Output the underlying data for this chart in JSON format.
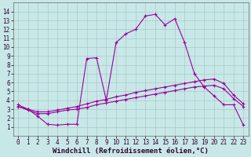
{
  "xlabel": "Windchill (Refroidissement éolien,°C)",
  "line1_x": [
    0,
    1,
    2,
    3,
    4,
    5,
    6,
    7,
    8,
    9,
    10,
    11,
    12,
    13,
    14,
    15,
    16,
    17,
    18,
    19,
    20,
    21,
    22,
    23
  ],
  "line1_y": [
    3.5,
    3.0,
    2.2,
    1.3,
    1.2,
    1.3,
    1.3,
    8.7,
    8.8,
    4.0,
    10.5,
    11.5,
    12.0,
    13.5,
    13.7,
    12.5,
    13.2,
    10.5,
    7.0,
    5.5,
    4.5,
    3.5,
    3.5,
    1.2
  ],
  "line2_x": [
    0,
    1,
    2,
    3,
    4,
    5,
    6,
    7,
    8,
    9,
    10,
    11,
    12,
    13,
    14,
    15,
    16,
    17,
    18,
    19,
    20,
    21,
    22,
    23
  ],
  "line2_y": [
    3.3,
    3.0,
    2.7,
    2.7,
    2.9,
    3.1,
    3.3,
    3.6,
    3.9,
    4.1,
    4.4,
    4.6,
    4.9,
    5.1,
    5.3,
    5.5,
    5.7,
    5.9,
    6.1,
    6.3,
    6.4,
    5.9,
    4.6,
    3.6
  ],
  "line3_x": [
    0,
    1,
    2,
    3,
    4,
    5,
    6,
    7,
    8,
    9,
    10,
    11,
    12,
    13,
    14,
    15,
    16,
    17,
    18,
    19,
    20,
    21,
    22,
    23
  ],
  "line3_y": [
    3.3,
    2.9,
    2.5,
    2.5,
    2.7,
    2.9,
    3.0,
    3.2,
    3.5,
    3.7,
    3.9,
    4.1,
    4.3,
    4.5,
    4.7,
    4.9,
    5.1,
    5.3,
    5.5,
    5.6,
    5.7,
    5.3,
    4.2,
    3.3
  ],
  "line_color": "#990099",
  "bg_color": "#c8e8e8",
  "grid_color": "#aac8c8",
  "ylim": [
    0,
    15
  ],
  "xlim": [
    -0.5,
    23.5
  ],
  "yticks": [
    1,
    2,
    3,
    4,
    5,
    6,
    7,
    8,
    9,
    10,
    11,
    12,
    13,
    14
  ],
  "xticks": [
    0,
    1,
    2,
    3,
    4,
    5,
    6,
    7,
    8,
    9,
    10,
    11,
    12,
    13,
    14,
    15,
    16,
    17,
    18,
    19,
    20,
    21,
    22,
    23
  ],
  "marker": "+",
  "markersize": 3,
  "linewidth": 0.8,
  "tick_fontsize": 5.5,
  "xlabel_fontsize": 6.5,
  "title_fontsize": 6
}
